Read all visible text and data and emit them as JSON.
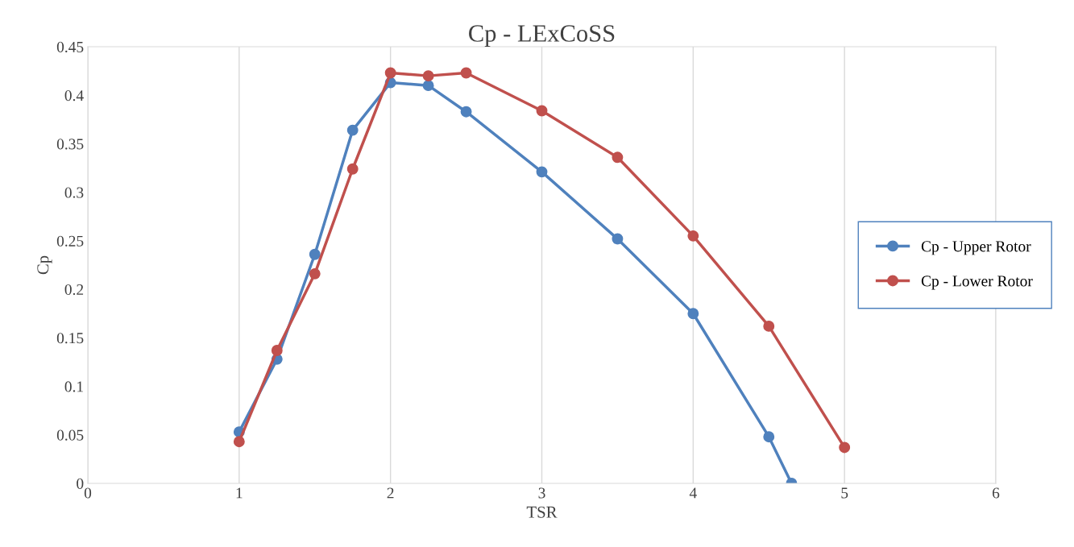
{
  "chart_data": {
    "type": "line",
    "title": "Cp - LExCoSS",
    "xlabel": "TSR",
    "ylabel": "Cp",
    "series": [
      {
        "name": "Cp - Upper Rotor",
        "color": "#4f81bd",
        "x": [
          1,
          1.25,
          1.5,
          1.75,
          2,
          2.25,
          2.5,
          3,
          3.5,
          4,
          4.5,
          4.65
        ],
        "values": [
          0.053,
          0.128,
          0.236,
          0.364,
          0.413,
          0.41,
          0.383,
          0.321,
          0.252,
          0.175,
          0.048,
          0
        ]
      },
      {
        "name": "Cp - Lower Rotor",
        "color": "#c0504d",
        "x": [
          1,
          1.25,
          1.5,
          1.75,
          2,
          2.25,
          2.5,
          3,
          3.5,
          4,
          4.5,
          5
        ],
        "values": [
          0.043,
          0.137,
          0.216,
          0.324,
          0.423,
          0.42,
          0.423,
          0.384,
          0.336,
          0.255,
          0.162,
          0.037
        ]
      }
    ],
    "xlim": [
      0,
      6
    ],
    "xticks": [
      0,
      1,
      2,
      3,
      4,
      5,
      6
    ],
    "ylim": [
      0,
      0.45
    ],
    "yticks": [
      0,
      0.05,
      0.1,
      0.15,
      0.2,
      0.25,
      0.3,
      0.35,
      0.4,
      0.45
    ],
    "grid": "x",
    "legend": "right",
    "marker": "circle",
    "line_style": "solid"
  }
}
